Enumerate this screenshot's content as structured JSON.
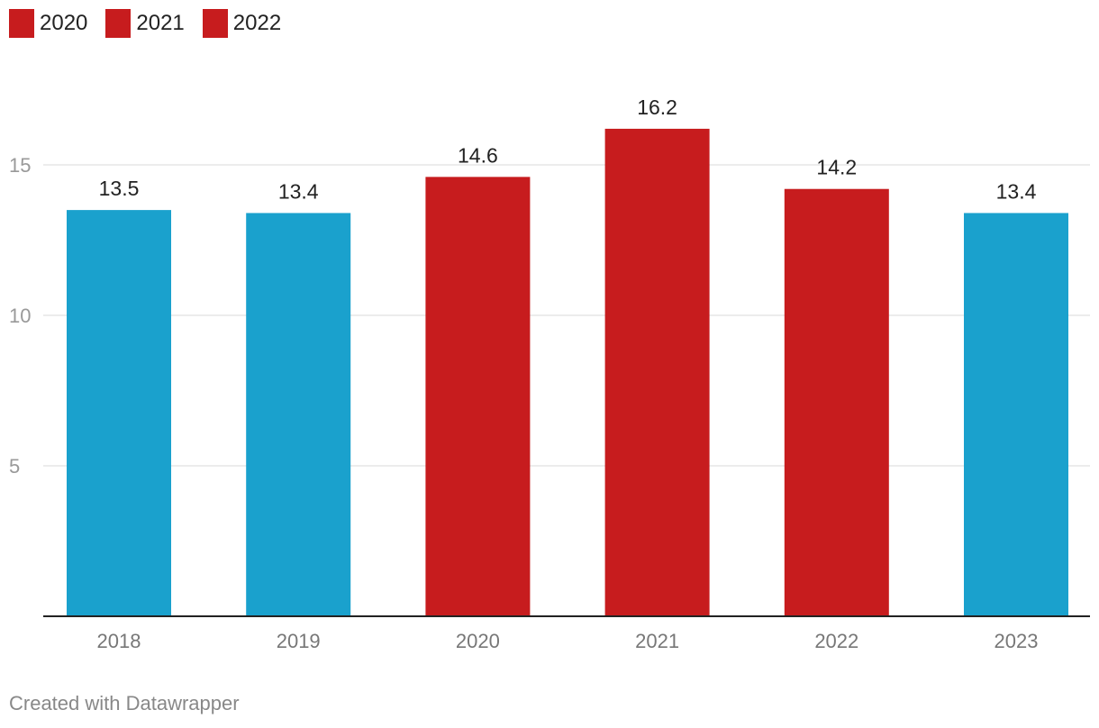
{
  "chart_data": {
    "type": "bar",
    "categories": [
      "2018",
      "2019",
      "2020",
      "2021",
      "2022",
      "2023"
    ],
    "values": [
      13.5,
      13.4,
      14.6,
      16.2,
      14.2,
      13.4
    ],
    "value_labels": [
      "13.5",
      "13.4",
      "14.6",
      "16.2",
      "14.2",
      "13.4"
    ],
    "bar_colors": [
      "#1aa1cd",
      "#1aa1cd",
      "#c71c1e",
      "#c71c1e",
      "#c71c1e",
      "#1aa1cd"
    ],
    "legend": [
      {
        "label": "2020",
        "color": "#c71c1e"
      },
      {
        "label": "2021",
        "color": "#c71c1e"
      },
      {
        "label": "2022",
        "color": "#c71c1e"
      }
    ],
    "legend_position": "top-left",
    "y_ticks": [
      5,
      10,
      15
    ],
    "y_tick_labels": [
      "5",
      "10",
      "15"
    ],
    "ylim": [
      0,
      18
    ],
    "grid": true,
    "title": "",
    "xlabel": "",
    "ylabel": ""
  },
  "footer": {
    "credit": "Created with Datawrapper"
  }
}
